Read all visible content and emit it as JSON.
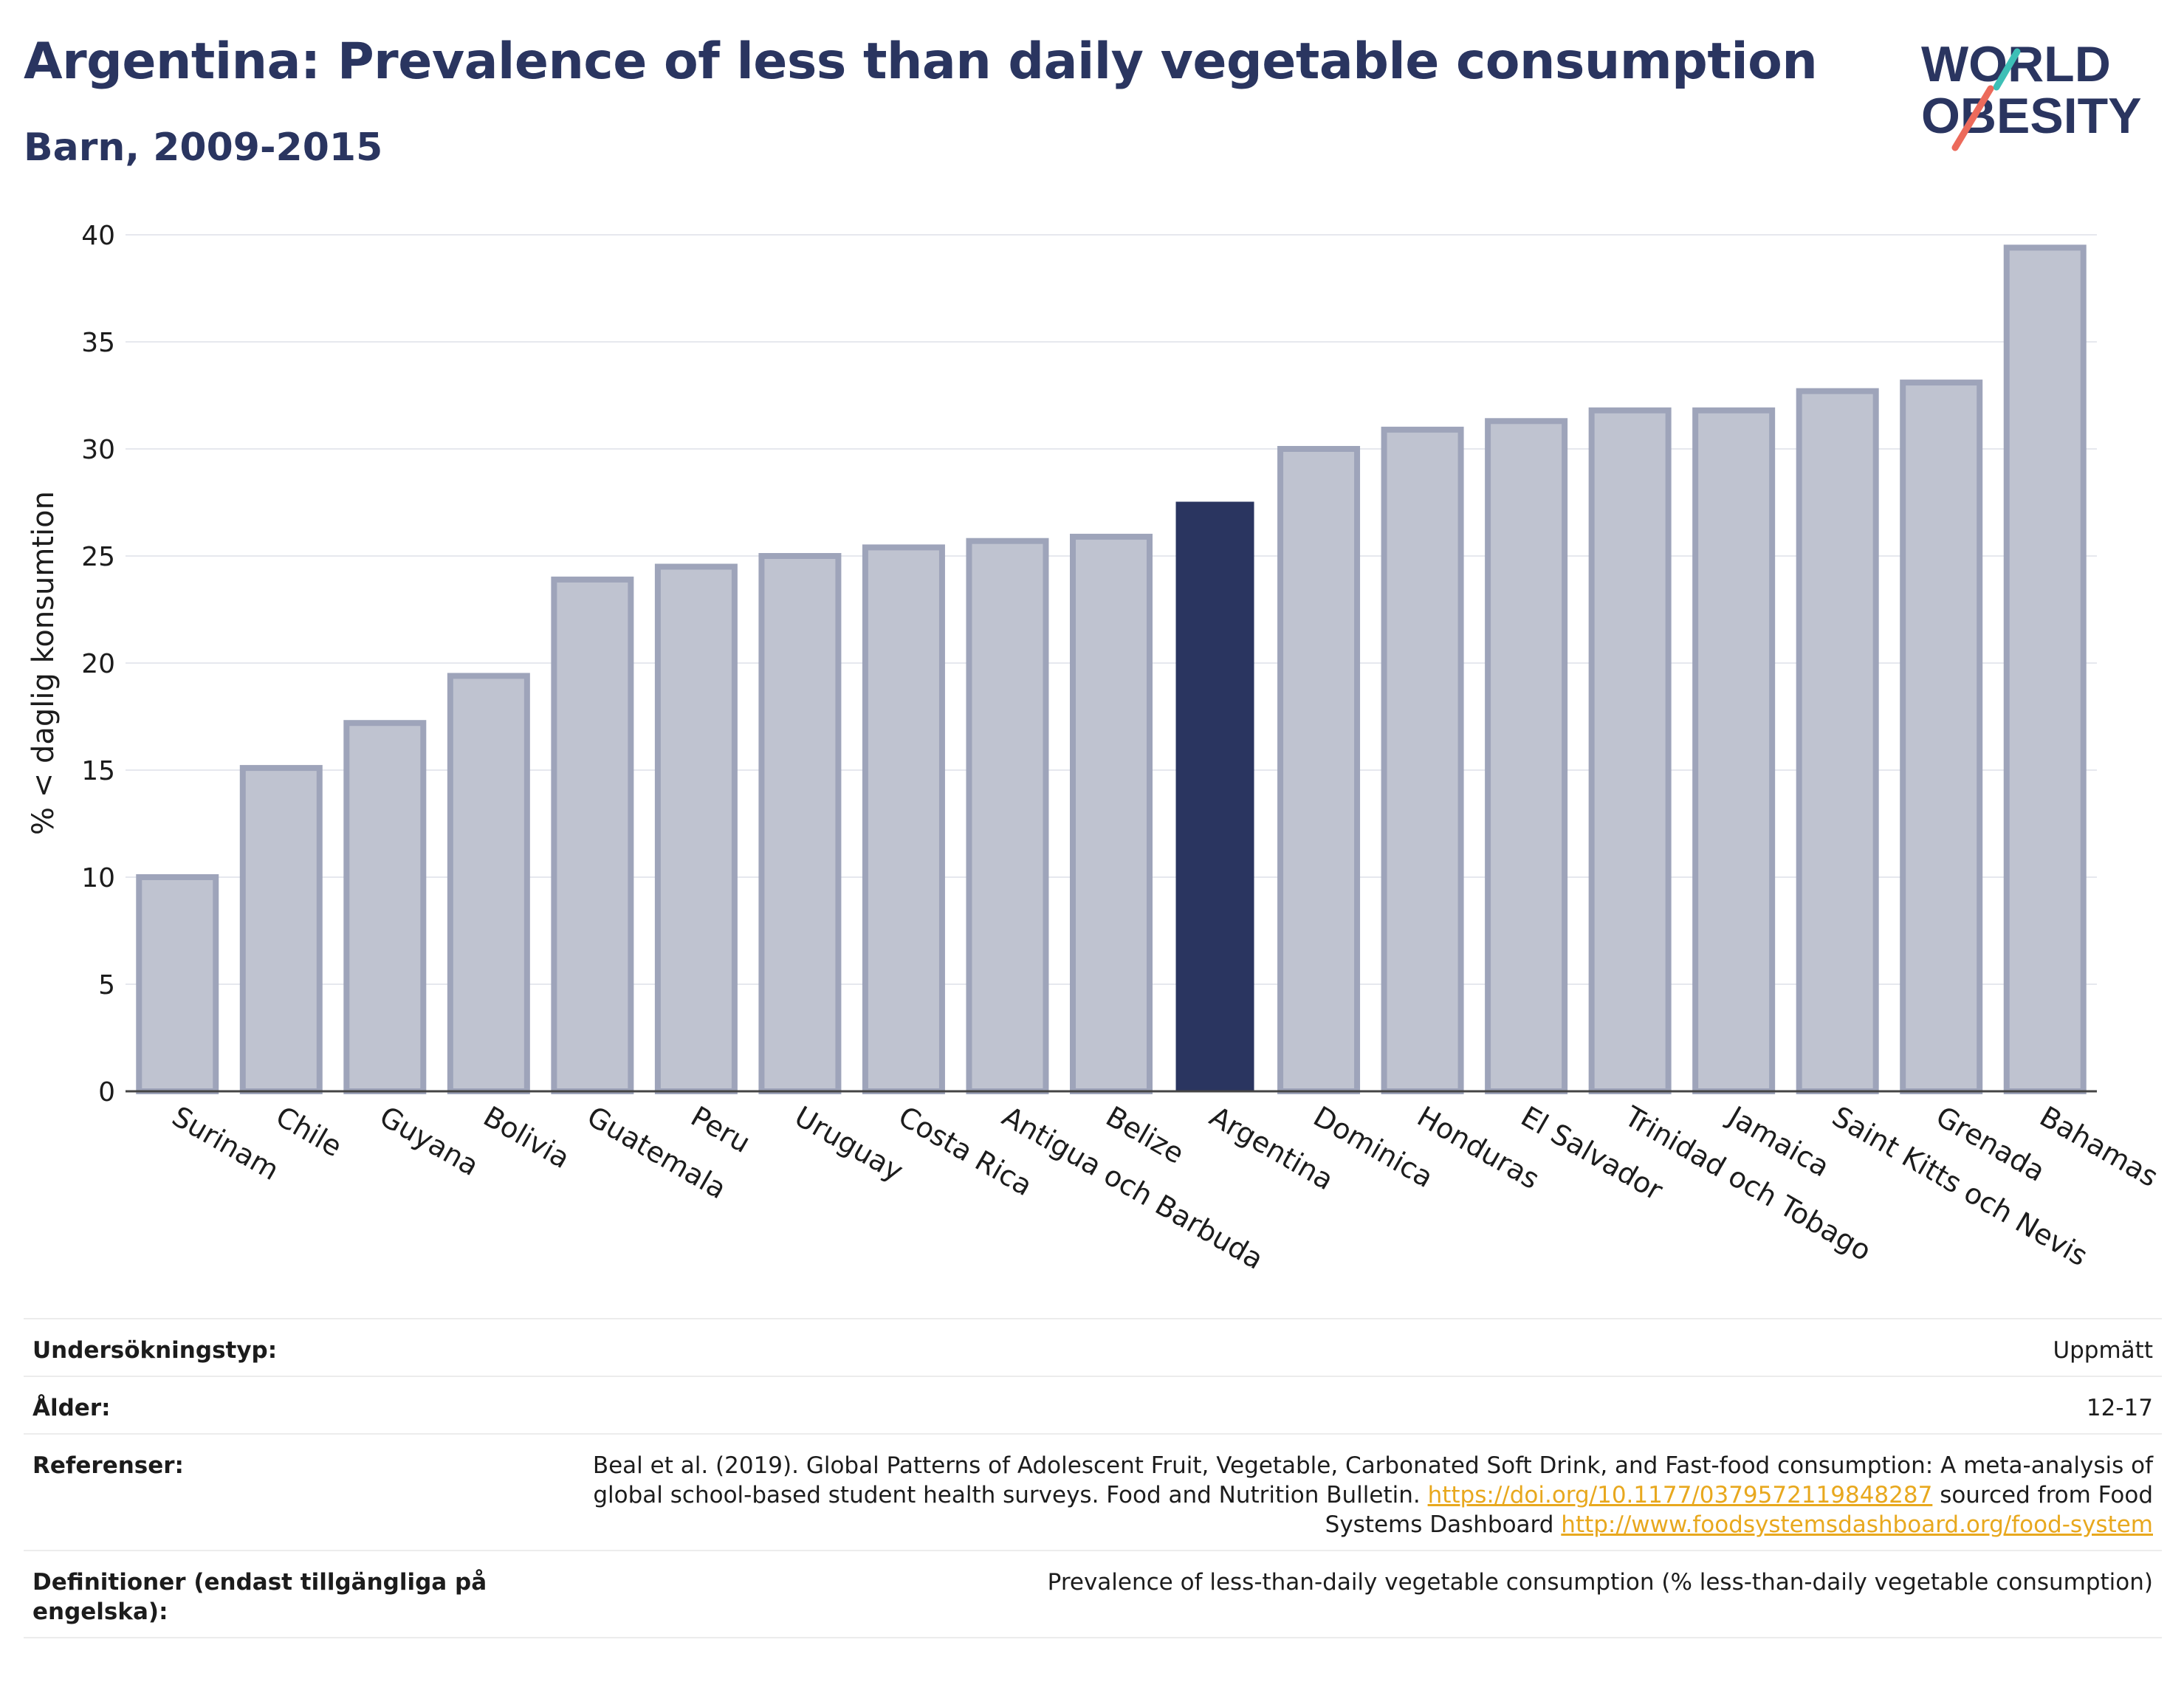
{
  "header": {
    "title": "Argentina: Prevalence of less than daily vegetable consumption",
    "subtitle": "Barn, 2009-2015",
    "logo_line1": "WORLD",
    "logo_line2": "OBESITY"
  },
  "colors": {
    "highlight_bar": "#2a3560",
    "default_bar": "#bfc3d0",
    "default_bar_border": "#9ea4ba",
    "logo_teal": "#3dbfb6",
    "logo_coral": "#ec6a5b",
    "link": "#e8a81e"
  },
  "chart_data": {
    "type": "bar",
    "title": "Argentina: Prevalence of less than daily vegetable consumption",
    "subtitle": "Barn, 2009-2015",
    "xlabel": "",
    "ylabel": "% < daglig konsumtion",
    "ylim": [
      0,
      40
    ],
    "yticks": [
      0,
      5,
      10,
      15,
      20,
      25,
      30,
      35,
      40
    ],
    "grid": true,
    "highlight": "Argentina",
    "categories": [
      "Surinam",
      "Chile",
      "Guyana",
      "Bolivia",
      "Guatemala",
      "Peru",
      "Uruguay",
      "Costa Rica",
      "Antigua och Barbuda",
      "Belize",
      "Argentina",
      "Dominica",
      "Honduras",
      "El Salvador",
      "Trinidad och Tobago",
      "Jamaica",
      "Saint Kitts och Nevis",
      "Grenada",
      "Bahamas"
    ],
    "values": [
      10.0,
      15.1,
      17.2,
      19.4,
      23.9,
      24.5,
      25.0,
      25.4,
      25.7,
      25.9,
      27.5,
      30.0,
      30.9,
      31.3,
      31.8,
      31.8,
      32.7,
      33.1,
      39.4
    ]
  },
  "details": {
    "survey_type_label": "Undersökningstyp:",
    "survey_type_value": "Uppmätt",
    "age_label": "Ålder:",
    "age_value": "12-17",
    "references_label": "Referenser:",
    "references_text_1": "Beal et al. (2019). Global Patterns of Adolescent Fruit, Vegetable, Carbonated Soft Drink, and Fast-food consumption: A meta-analysis of global school-based student health surveys. Food and Nutrition Bulletin.",
    "references_link_1": "https://doi.org/10.1177/0379572119848287",
    "references_text_2": "sourced from Food Systems Dashboard",
    "references_link_2": "http://www.foodsystemsdashboard.org/food-system",
    "definitions_label": "Definitioner (endast tillgängliga på engelska):",
    "definitions_value": "Prevalence of less-than-daily vegetable consumption (% less-than-daily vegetable consumption)"
  }
}
